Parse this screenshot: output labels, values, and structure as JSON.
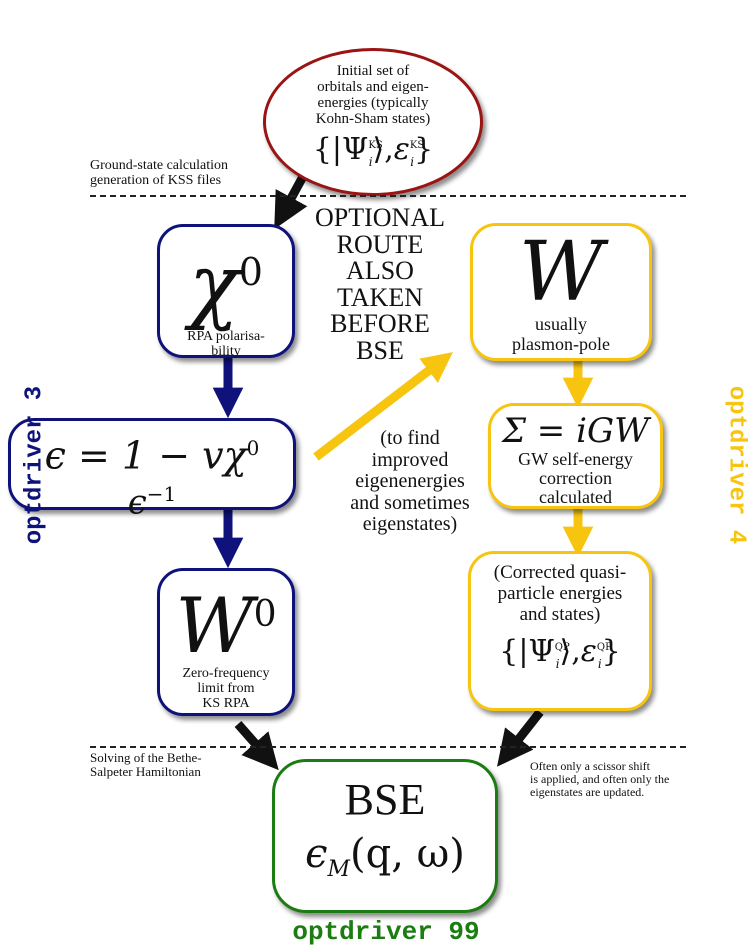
{
  "top_ellipse": {
    "lines": [
      "Initial set of",
      "orbitals and eigen-",
      "energies (typically",
      "Kohn-Sham states)"
    ],
    "formula_psi": "Ψ",
    "formula_sub": "i",
    "formula_sup": "KS",
    "formula_eps": "ε"
  },
  "dividers": {
    "top_label": [
      "Ground-state calculation",
      "generation of KSS files"
    ],
    "bottom_label": [
      "Solving of the Bethe-",
      "Salpeter Hamiltonian"
    ]
  },
  "chi0_box": {
    "symbol": "χ",
    "sup": "0",
    "caption": [
      "RPA polarisa-",
      "bility"
    ]
  },
  "epsilon_box": {
    "line1": "ϵ = 1 − vχ",
    "line1_sup": "0",
    "line2": "ϵ",
    "line2_sup": "−1"
  },
  "w0_box": {
    "symbol": "W",
    "sup": "0",
    "caption": [
      "Zero-frequency",
      "limit from",
      "KS RPA"
    ]
  },
  "w_box": {
    "symbol": "W",
    "caption": [
      "usually",
      "plasmon-pole"
    ]
  },
  "sigma_box": {
    "formula": "Σ = iGW",
    "caption": [
      "GW self-energy",
      "correction",
      "calculated"
    ]
  },
  "qp_box": {
    "caption": [
      "(Corrected quasi-",
      "particle energies",
      "and states)"
    ],
    "formula_psi": "Ψ",
    "formula_sub": "i",
    "formula_sup": "QP",
    "formula_eps": "ε"
  },
  "bse_box": {
    "title": "BSE",
    "formula_eps": "ϵ",
    "formula_sub": "M",
    "formula_args": "(q, ω)"
  },
  "optional_route": [
    "OPTIONAL",
    "ROUTE",
    "ALSO",
    "TAKEN",
    "BEFORE",
    "BSE"
  ],
  "improved_note": [
    "(to find",
    "improved",
    "eigenenergies",
    "and sometimes",
    "eigenstates)"
  ],
  "scissor_note": [
    "Often only a scissor shift",
    "is applied, and often only the",
    "eigenstates are updated."
  ],
  "side_labels": {
    "left": "optdriver 3",
    "right": "optdriver 4",
    "bottom": "optdriver 99"
  },
  "colors": {
    "blue": "#0e127a",
    "gold": "#f7c510",
    "green": "#1b7c12",
    "dark_red": "#9b1414",
    "black": "#111111"
  }
}
